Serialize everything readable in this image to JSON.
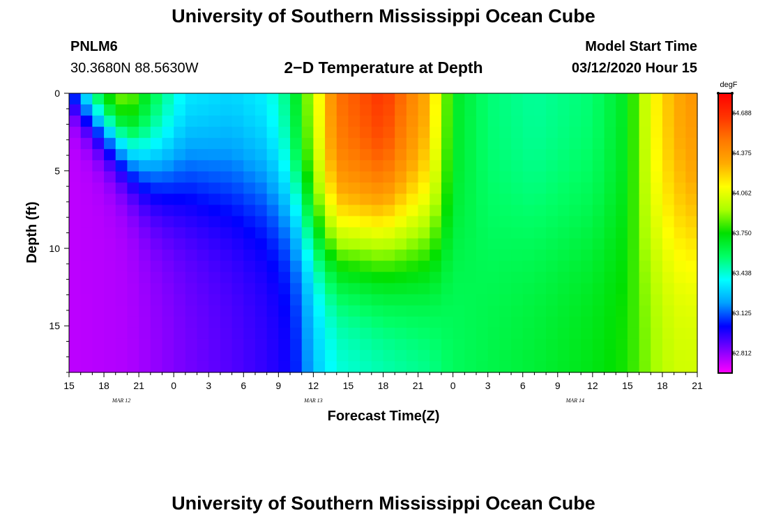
{
  "page": {
    "title_top": "University of Southern Mississippi Ocean Cube",
    "title_bottom": "University of Southern Mississippi Ocean Cube",
    "station": "PNLM6",
    "coords": "30.3680N 88.5630W",
    "model_label": "Model Start Time",
    "model_time": "03/12/2020 Hour 15"
  },
  "chart_data": {
    "type": "heatmap",
    "title": "2−D Temperature at Depth",
    "xlabel": "Forecast Time(Z)",
    "ylabel": "Depth (ft)",
    "x_range_hours": [
      0,
      54
    ],
    "x_step_hours": 1,
    "x_tick_labels": [
      "15",
      "18",
      "21",
      "0",
      "3",
      "6",
      "9",
      "12",
      "15",
      "18",
      "21",
      "0",
      "3",
      "6",
      "9",
      "12",
      "15",
      "18",
      "21"
    ],
    "date_labels": [
      {
        "text": "MAR  12",
        "hour": 4.5
      },
      {
        "text": "MAR  13",
        "hour": 21
      },
      {
        "text": "MAR  14",
        "hour": 43.5
      }
    ],
    "y_range": [
      0,
      18
    ],
    "y_ticks": [
      0,
      5,
      10,
      15
    ],
    "y_labels": [
      "0",
      "5",
      "10",
      "15"
    ],
    "depth_levels": [
      0,
      0.72,
      1.44,
      2.16,
      2.88,
      3.6,
      4.32,
      5.04,
      5.76,
      6.48,
      7.2,
      7.92,
      8.64,
      9.36,
      10.08,
      10.8,
      11.52,
      12.24,
      12.96,
      13.68,
      14.4,
      15.12,
      15.84,
      16.56,
      17.28,
      18
    ],
    "colorbar": {
      "unit": "degF",
      "min": 62.656,
      "max": 64.844,
      "tick_values": [
        62.812,
        63.125,
        63.438,
        63.75,
        64.062,
        64.375,
        64.688
      ],
      "tick_labels": [
        "62.812",
        "63.125",
        "63.438",
        "63.750",
        "64.062",
        "64.375",
        "64.688"
      ],
      "colors": [
        "#ff00ff",
        "#7f00ff",
        "#0000ff",
        "#00a0ff",
        "#00ffff",
        "#00ff66",
        "#00e000",
        "#aaff00",
        "#ffff00",
        "#ffaa00",
        "#ff7700",
        "#ff3300",
        "#ff0000"
      ]
    },
    "profiles": [
      {
        "hour": 0,
        "surface": 63.1,
        "bottom": 62.75,
        "thermocline_ft": 0.5,
        "width_ft": 1.5
      },
      {
        "hour": 3,
        "surface": 63.9,
        "bottom": 62.76,
        "thermocline_ft": 2.0,
        "width_ft": 2.5
      },
      {
        "hour": 5,
        "surface": 64.0,
        "bottom": 62.77,
        "thermocline_ft": 3.5,
        "width_ft": 3.0
      },
      {
        "hour": 7,
        "surface": 63.7,
        "bottom": 62.8,
        "thermocline_ft": 4.5,
        "width_ft": 4.0
      },
      {
        "hour": 10,
        "surface": 63.4,
        "bottom": 62.85,
        "thermocline_ft": 5.0,
        "width_ft": 5.0
      },
      {
        "hour": 14,
        "surface": 63.35,
        "bottom": 62.9,
        "thermocline_ft": 5.5,
        "width_ft": 5.5
      },
      {
        "hour": 17,
        "surface": 63.4,
        "bottom": 62.95,
        "thermocline_ft": 6.0,
        "width_ft": 5.5
      },
      {
        "hour": 19,
        "surface": 63.6,
        "bottom": 63.0,
        "thermocline_ft": 7.0,
        "width_ft": 5.5
      },
      {
        "hour": 20,
        "surface": 63.8,
        "bottom": 63.1,
        "thermocline_ft": 8.0,
        "width_ft": 5.0
      },
      {
        "hour": 21,
        "surface": 64.0,
        "bottom": 63.25,
        "thermocline_ft": 9.0,
        "width_ft": 5.0
      },
      {
        "hour": 23,
        "surface": 64.5,
        "bottom": 63.4,
        "thermocline_ft": 9.5,
        "width_ft": 5.0
      },
      {
        "hour": 27,
        "surface": 64.7,
        "bottom": 63.45,
        "thermocline_ft": 9.0,
        "width_ft": 5.5
      },
      {
        "hour": 31,
        "surface": 64.3,
        "bottom": 63.5,
        "thermocline_ft": 9.0,
        "width_ft": 6.0
      },
      {
        "hour": 33,
        "surface": 63.7,
        "bottom": 63.58,
        "thermocline_ft": 9.0,
        "width_ft": 6.0
      },
      {
        "hour": 36,
        "surface": 63.55,
        "bottom": 63.62,
        "thermocline_ft": 9.0,
        "width_ft": 6.0
      },
      {
        "hour": 40,
        "surface": 63.5,
        "bottom": 63.66,
        "thermocline_ft": 9.0,
        "width_ft": 6.0
      },
      {
        "hour": 45,
        "surface": 63.55,
        "bottom": 63.72,
        "thermocline_ft": 9.0,
        "width_ft": 6.0
      },
      {
        "hour": 48,
        "surface": 63.7,
        "bottom": 63.78,
        "thermocline_ft": 9.0,
        "width_ft": 6.0
      },
      {
        "hour": 50,
        "surface": 64.1,
        "bottom": 63.9,
        "thermocline_ft": 9.0,
        "width_ft": 6.0
      },
      {
        "hour": 52,
        "surface": 64.3,
        "bottom": 64.0,
        "thermocline_ft": 9.0,
        "width_ft": 6.0
      },
      {
        "hour": 54,
        "surface": 64.4,
        "bottom": 64.0,
        "thermocline_ft": 9.0,
        "width_ft": 6.0
      }
    ]
  }
}
